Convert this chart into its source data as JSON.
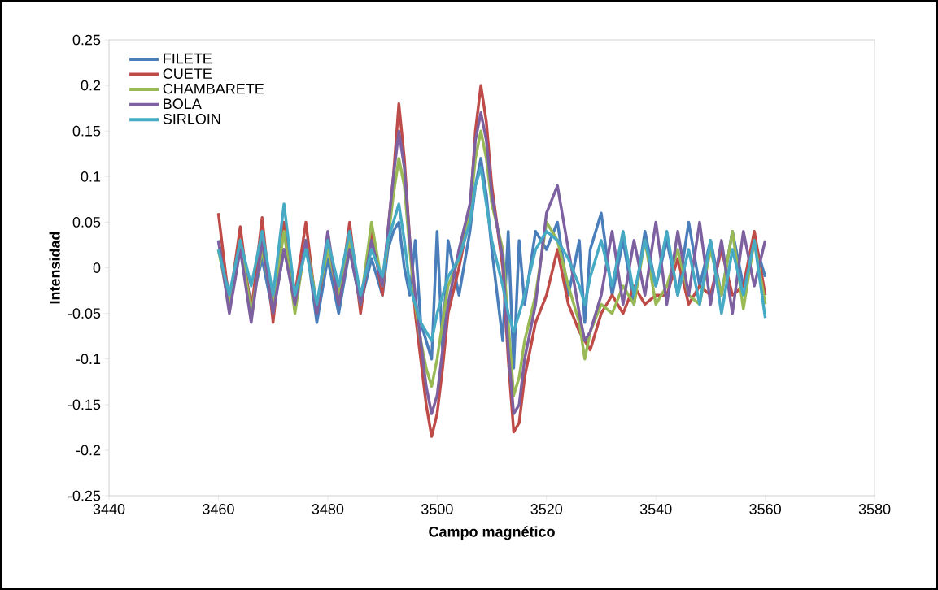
{
  "chart_data": {
    "type": "line",
    "xlabel": "Campo magnético",
    "ylabel": "Intensidad",
    "xlim": [
      3440,
      3580
    ],
    "xticks": [
      3440,
      3460,
      3480,
      3500,
      3520,
      3540,
      3560,
      3580
    ],
    "ylim": [
      -0.25,
      0.25
    ],
    "yticks": [
      -0.25,
      -0.2,
      -0.15,
      -0.1,
      -0.05,
      0,
      0.05,
      0.1,
      0.15,
      0.2,
      0.25
    ],
    "grid": false,
    "legend": "top left",
    "marker": "none",
    "line_style": "solid",
    "x": [
      3460,
      3462,
      3464,
      3466,
      3468,
      3470,
      3472,
      3474,
      3476,
      3478,
      3480,
      3482,
      3484,
      3486,
      3488,
      3490,
      3491,
      3492,
      3493,
      3494,
      3495,
      3496,
      3497,
      3498,
      3499,
      3500,
      3501,
      3502,
      3504,
      3506,
      3507,
      3508,
      3509,
      3510,
      3512,
      3513,
      3514,
      3515,
      3516,
      3518,
      3520,
      3522,
      3524,
      3526,
      3527,
      3528,
      3530,
      3532,
      3534,
      3536,
      3538,
      3540,
      3542,
      3544,
      3546,
      3548,
      3550,
      3552,
      3554,
      3556,
      3558,
      3560
    ],
    "series": [
      {
        "name": "FILETE",
        "color": "#4a7ebb",
        "values": [
          0.03,
          -0.03,
          0.02,
          -0.04,
          0.01,
          -0.05,
          0.02,
          -0.03,
          0.03,
          -0.06,
          0.01,
          -0.05,
          0.02,
          -0.04,
          0.01,
          -0.03,
          0.02,
          0.04,
          0.05,
          0.0,
          -0.03,
          0.03,
          -0.06,
          -0.08,
          -0.1,
          0.04,
          -0.09,
          0.03,
          -0.03,
          0.04,
          0.09,
          0.12,
          0.08,
          0.02,
          -0.08,
          0.04,
          -0.11,
          0.03,
          -0.04,
          0.04,
          0.02,
          0.05,
          -0.03,
          0.03,
          -0.06,
          0.02,
          0.06,
          -0.03,
          0.03,
          -0.04,
          0.04,
          -0.02,
          0.03,
          -0.03,
          0.05,
          -0.02,
          0.03,
          -0.03,
          0.04,
          -0.02,
          0.03,
          -0.01
        ]
      },
      {
        "name": "CUETE",
        "color": "#be4b48",
        "values": [
          0.06,
          -0.04,
          0.045,
          -0.05,
          0.055,
          -0.06,
          0.05,
          -0.03,
          0.05,
          -0.05,
          0.03,
          -0.04,
          0.05,
          -0.05,
          0.04,
          -0.03,
          0.04,
          0.1,
          0.18,
          0.12,
          0.03,
          -0.05,
          -0.1,
          -0.15,
          -0.185,
          -0.16,
          -0.11,
          -0.05,
          0.0,
          0.06,
          0.15,
          0.2,
          0.16,
          0.09,
          0.0,
          -0.1,
          -0.18,
          -0.17,
          -0.12,
          -0.06,
          -0.03,
          0.02,
          -0.04,
          -0.07,
          -0.08,
          -0.09,
          -0.05,
          -0.03,
          -0.05,
          -0.02,
          -0.04,
          -0.03,
          -0.03,
          0.01,
          -0.04,
          -0.02,
          -0.03,
          0.02,
          -0.03,
          -0.02,
          0.04,
          -0.03
        ]
      },
      {
        "name": "CHAMBARETE",
        "color": "#98b954",
        "values": [
          0.02,
          -0.04,
          0.03,
          -0.05,
          0.02,
          -0.04,
          0.04,
          -0.05,
          0.03,
          -0.04,
          0.02,
          -0.03,
          0.03,
          -0.04,
          0.05,
          -0.02,
          0.03,
          0.08,
          0.12,
          0.09,
          0.02,
          -0.04,
          -0.08,
          -0.11,
          -0.13,
          -0.1,
          -0.06,
          -0.02,
          0.01,
          0.06,
          0.12,
          0.15,
          0.12,
          0.07,
          0.02,
          -0.06,
          -0.14,
          -0.12,
          -0.08,
          -0.03,
          0.05,
          0.03,
          -0.02,
          -0.06,
          -0.1,
          -0.07,
          -0.04,
          -0.05,
          -0.02,
          -0.04,
          0.03,
          -0.04,
          -0.02,
          0.02,
          -0.03,
          -0.04,
          0.02,
          -0.03,
          0.04,
          -0.045,
          0.03,
          -0.04
        ]
      },
      {
        "name": "BOLA",
        "color": "#7d60a0",
        "values": [
          0.03,
          -0.05,
          0.02,
          -0.06,
          0.03,
          -0.05,
          0.02,
          -0.04,
          0.03,
          -0.05,
          0.04,
          -0.04,
          0.02,
          -0.04,
          0.03,
          -0.02,
          0.04,
          0.1,
          0.15,
          0.11,
          0.03,
          -0.03,
          -0.08,
          -0.13,
          -0.16,
          -0.14,
          -0.09,
          -0.04,
          0.02,
          0.07,
          0.14,
          0.17,
          0.14,
          0.08,
          0.01,
          -0.09,
          -0.16,
          -0.15,
          -0.1,
          -0.04,
          0.06,
          0.09,
          0.02,
          -0.05,
          -0.08,
          -0.07,
          -0.03,
          0.04,
          -0.04,
          0.03,
          -0.03,
          0.05,
          -0.04,
          0.04,
          -0.03,
          0.05,
          -0.04,
          0.03,
          -0.05,
          0.04,
          -0.02,
          0.03
        ]
      },
      {
        "name": "SIRLOIN",
        "color": "#46aac5",
        "values": [
          0.02,
          -0.03,
          0.03,
          -0.02,
          0.04,
          -0.03,
          0.07,
          -0.03,
          0.02,
          -0.04,
          0.03,
          -0.02,
          0.04,
          -0.03,
          0.02,
          -0.01,
          0.03,
          0.05,
          0.07,
          0.03,
          -0.02,
          -0.04,
          -0.06,
          -0.07,
          -0.08,
          -0.05,
          -0.03,
          -0.01,
          0.01,
          0.05,
          0.09,
          0.11,
          0.07,
          0.03,
          -0.02,
          -0.05,
          -0.07,
          -0.05,
          -0.03,
          0.02,
          0.04,
          0.03,
          0.01,
          -0.02,
          -0.04,
          -0.01,
          0.03,
          -0.02,
          0.04,
          -0.03,
          0.03,
          -0.02,
          0.04,
          -0.03,
          0.02,
          -0.04,
          0.03,
          -0.05,
          0.02,
          -0.03,
          0.03,
          -0.055
        ]
      }
    ]
  }
}
